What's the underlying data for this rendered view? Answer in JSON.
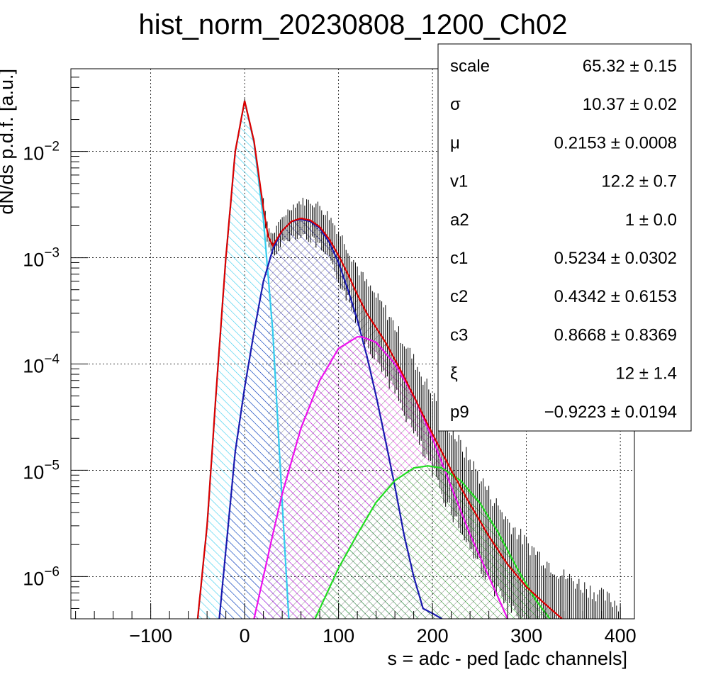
{
  "chart_data": {
    "type": "line",
    "title": "hist_norm_20230808_1200_Ch02",
    "xlabel": "s = adc - ped [adc channels]",
    "ylabel": "dN/ds p.d.f. [a.u.]",
    "xlim": [
      -185,
      415
    ],
    "ylim": [
      4e-07,
      0.06
    ],
    "yscale": "log",
    "grid": true,
    "x_ticks": [
      {
        "value": -100,
        "label": "−100"
      },
      {
        "value": 0,
        "label": "0"
      },
      {
        "value": 100,
        "label": "100"
      },
      {
        "value": 200,
        "label": "200"
      },
      {
        "value": 300,
        "label": "300"
      },
      {
        "value": 400,
        "label": "400"
      }
    ],
    "y_ticks": [
      {
        "value": 1e-06,
        "base": "10",
        "exp": "−6"
      },
      {
        "value": 1e-05,
        "base": "10",
        "exp": "−5"
      },
      {
        "value": 0.0001,
        "base": "10",
        "exp": "−4"
      },
      {
        "value": 0.001,
        "base": "10",
        "exp": "−3"
      },
      {
        "value": 0.01,
        "base": "10",
        "exp": "−2"
      }
    ],
    "series": [
      {
        "key": "pedestal",
        "color": "#33ccee",
        "hatch": true,
        "x": [
          -50,
          -40,
          -30,
          -20,
          -10,
          0,
          10,
          20,
          30,
          40,
          47
        ],
        "y": [
          4e-07,
          3e-06,
          6e-05,
          0.001,
          0.01,
          0.03,
          0.012,
          0.0023,
          0.0002,
          5e-06,
          4e-07
        ]
      },
      {
        "key": "one-photoelectron",
        "color": "#1a1ab0",
        "hatch": true,
        "x": [
          -27,
          -10,
          0,
          10,
          20,
          30,
          40,
          50,
          60,
          70,
          80,
          90,
          100,
          110,
          120,
          130,
          140,
          150,
          160,
          170,
          180,
          190,
          200,
          210
        ],
        "y": [
          4e-07,
          1.5e-05,
          6e-05,
          0.0002,
          0.0006,
          0.0012,
          0.0018,
          0.0022,
          0.0023,
          0.0022,
          0.0019,
          0.0014,
          0.0009,
          0.0005,
          0.00026,
          0.00012,
          5e-05,
          1.9e-05,
          7e-06,
          2.4e-06,
          1e-06,
          5e-07,
          4.5e-07,
          4e-07
        ]
      },
      {
        "key": "two-photoelectron",
        "color": "#ee11ee",
        "hatch": true,
        "x": [
          10,
          20,
          30,
          40,
          60,
          80,
          100,
          120,
          125,
          140,
          160,
          180,
          200,
          220,
          240,
          260,
          280
        ],
        "y": [
          4e-07,
          1e-06,
          2.5e-06,
          6e-06,
          2.5e-05,
          7e-05,
          0.00014,
          0.00018,
          0.00018,
          0.00016,
          0.0001,
          5e-05,
          2e-05,
          7e-06,
          2.5e-06,
          1e-06,
          4e-07
        ]
      },
      {
        "key": "three-photoelectron",
        "color": "#22dd22",
        "hatch": true,
        "x": [
          75,
          100,
          120,
          140,
          160,
          180,
          195,
          210,
          230,
          250,
          270,
          290,
          310,
          325
        ],
        "y": [
          4e-07,
          1.2e-06,
          2.5e-06,
          5e-06,
          8e-06,
          1.05e-05,
          1.1e-05,
          1.05e-05,
          8e-06,
          5e-06,
          2.6e-06,
          1.2e-06,
          6e-07,
          4e-07
        ]
      },
      {
        "key": "total-fit",
        "color": "#dd0000",
        "hatch": false,
        "x": [
          -50,
          -40,
          -30,
          -20,
          -10,
          0,
          10,
          20,
          25,
          30,
          40,
          50,
          60,
          70,
          80,
          90,
          100,
          110,
          120,
          130,
          140,
          150,
          160,
          170,
          180,
          190,
          200,
          220,
          240,
          260,
          280,
          300,
          320,
          338
        ],
        "y": [
          4e-07,
          3e-06,
          6e-05,
          0.001,
          0.01,
          0.03,
          0.0125,
          0.0029,
          0.0016,
          0.0013,
          0.0018,
          0.0022,
          0.00235,
          0.00225,
          0.00195,
          0.0015,
          0.00105,
          0.0007,
          0.00045,
          0.0003,
          0.00022,
          0.00016,
          0.00011,
          7.5e-05,
          5e-05,
          3.3e-05,
          2.2e-05,
          1e-05,
          4.8e-06,
          2.4e-06,
          1.3e-06,
          8e-07,
          5.5e-07,
          4e-07
        ]
      }
    ]
  },
  "stats_box": {
    "rows": [
      {
        "name": "scale",
        "value": "65.32 ± 0.15"
      },
      {
        "name": "σ",
        "value": "10.37 ± 0.02"
      },
      {
        "name": "μ",
        "value": "0.2153 ± 0.0008"
      },
      {
        "name": "v1",
        "value": "12.2 ± 0.7"
      },
      {
        "name": "a2",
        "value": "1 ± 0.0"
      },
      {
        "name": "c1",
        "value": "0.5234 ± 0.0302"
      },
      {
        "name": "c2",
        "value": "0.4342 ± 0.6153"
      },
      {
        "name": "c3",
        "value": "0.8668 ± 0.8369"
      },
      {
        "name": "ξ",
        "value": "12 ± 1.4"
      },
      {
        "name": "p9",
        "value": "−0.9223 ± 0.0194"
      }
    ]
  }
}
